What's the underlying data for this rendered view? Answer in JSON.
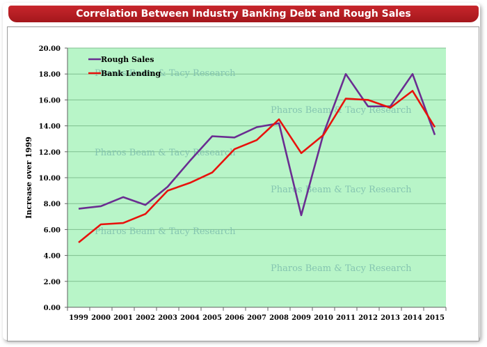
{
  "title": "Correlation Between Industry Banking Debt and Rough Sales",
  "chart_data": {
    "type": "line",
    "title": "Correlation Between Industry Banking Debt and Rough Sales",
    "xlabel": "",
    "ylabel": "Increase over 1999",
    "categories": [
      "1999",
      "2000",
      "2001",
      "2002",
      "2003",
      "2004",
      "2005",
      "2006",
      "2007",
      "2008",
      "2009",
      "2010",
      "2011",
      "2012",
      "2013",
      "2014",
      "2015"
    ],
    "ylim": [
      0,
      20
    ],
    "yticks": [
      "0.00",
      "2.00",
      "4.00",
      "6.00",
      "8.00",
      "10.00",
      "12.00",
      "14.00",
      "16.00",
      "18.00",
      "20.00"
    ],
    "grid": true,
    "legend_position": "top-left",
    "series": [
      {
        "name": "Rough Sales",
        "color": "#6a2d91",
        "values": [
          7.6,
          7.8,
          8.5,
          7.9,
          9.3,
          11.3,
          13.2,
          13.1,
          13.9,
          14.2,
          7.1,
          13.4,
          18.0,
          15.5,
          15.5,
          18.0,
          13.3
        ]
      },
      {
        "name": "Bank Lending",
        "color": "#e8120c",
        "values": [
          5.0,
          6.4,
          6.5,
          7.2,
          9.0,
          9.6,
          10.4,
          12.2,
          12.9,
          14.5,
          11.9,
          13.3,
          16.1,
          16.0,
          15.4,
          16.7,
          13.9
        ]
      }
    ],
    "watermark": "Pharos Beam & Tacy Research",
    "background_color": "#b8f5c8",
    "grid_color": "#7fbf8f"
  }
}
